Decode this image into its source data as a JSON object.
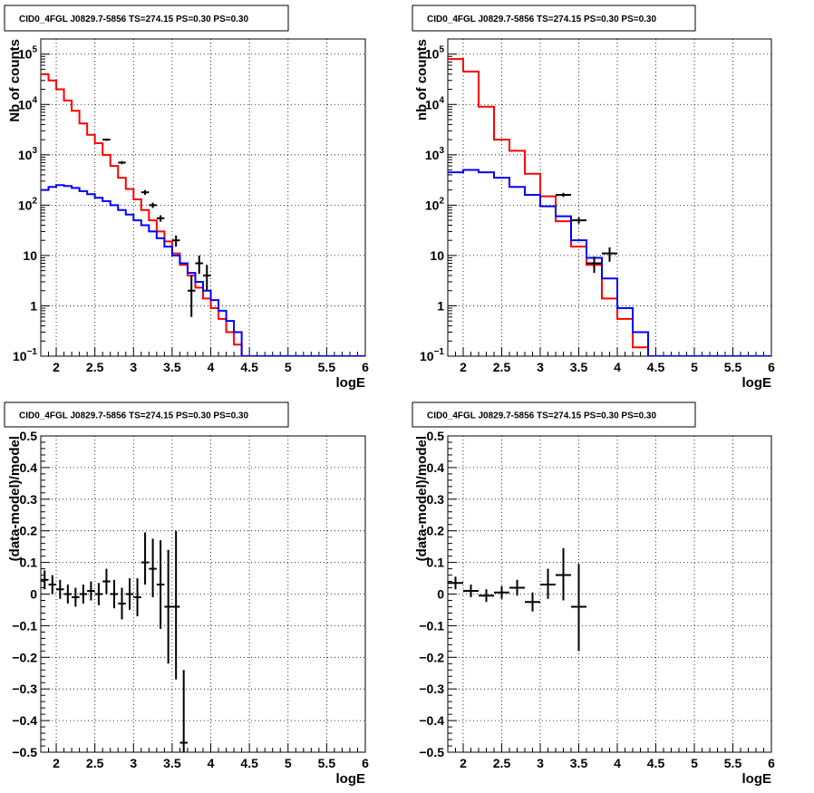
{
  "chart_data": [
    {
      "type": "line",
      "title": "CID0_4FGL J0829.7-5856 TS=274.15 PS=0.30 PS=0.30",
      "xlabel": "logE",
      "ylabel": "Nb of counts",
      "xlim": [
        1.8,
        6.0
      ],
      "ylim": [
        0.1,
        200000
      ],
      "yscale": "log",
      "grid": true,
      "x_ticks": [
        "2",
        "2.5",
        "3",
        "3.5",
        "4",
        "4.5",
        "5",
        "5.5",
        "6"
      ],
      "y_ticks": [
        {
          "v": 0.1,
          "base": "10",
          "exp": "−1"
        },
        {
          "v": 1,
          "label": "1"
        },
        {
          "v": 10,
          "label": "10"
        },
        {
          "v": 100,
          "base": "10",
          "exp": "2"
        },
        {
          "v": 1000,
          "base": "10",
          "exp": "3"
        },
        {
          "v": 10000,
          "base": "10",
          "exp": "4"
        },
        {
          "v": 100000,
          "base": "10",
          "exp": "5"
        }
      ],
      "series": [
        {
          "kind": "step",
          "color": "#ff0000",
          "edges": [
            1.8,
            1.9,
            2.0,
            2.1,
            2.2,
            2.3,
            2.4,
            2.5,
            2.6,
            2.7,
            2.8,
            2.9,
            3.0,
            3.1,
            3.2,
            3.3,
            3.4,
            3.5,
            3.6,
            3.7,
            3.8,
            3.9,
            4.0,
            4.1,
            4.2,
            4.3,
            4.4,
            4.5,
            4.6,
            4.7,
            4.8,
            4.9,
            5.0,
            5.1,
            5.2,
            5.3,
            5.4,
            5.5,
            5.6,
            5.7,
            5.8,
            5.9,
            6.0
          ],
          "values": [
            40000,
            30000,
            20000,
            12000,
            7500,
            4200,
            2500,
            1700,
            1000,
            600,
            350,
            210,
            130,
            80,
            50,
            30,
            19,
            11,
            6.5,
            4,
            2.3,
            1.4,
            0.9,
            0.55,
            0.3,
            0.17,
            0.1,
            0.1,
            0.1,
            0.1,
            0.1,
            0.1,
            0.1,
            0.1,
            0.1,
            0.1,
            0.1,
            0.1,
            0.1,
            0.1,
            0.1,
            0.1
          ]
        },
        {
          "kind": "step",
          "color": "#0000ff",
          "edges": [
            1.8,
            1.9,
            2.0,
            2.1,
            2.2,
            2.3,
            2.4,
            2.5,
            2.6,
            2.7,
            2.8,
            2.9,
            3.0,
            3.1,
            3.2,
            3.3,
            3.4,
            3.5,
            3.6,
            3.7,
            3.8,
            3.9,
            4.0,
            4.1,
            4.2,
            4.3,
            4.4,
            4.5,
            4.6,
            4.7,
            4.8,
            4.9,
            5.0,
            5.1,
            5.2,
            5.3,
            5.4,
            5.5,
            5.6,
            5.7,
            5.8,
            5.9,
            6.0
          ],
          "values": [
            200,
            230,
            250,
            240,
            220,
            190,
            165,
            140,
            120,
            100,
            80,
            65,
            50,
            40,
            30,
            22,
            15,
            10,
            7,
            4.5,
            3,
            2,
            1.3,
            0.8,
            0.5,
            0.3,
            0.1,
            0.1,
            0.1,
            0.1,
            0.1,
            0.1,
            0.1,
            0.1,
            0.1,
            0.1,
            0.1,
            0.1,
            0.1,
            0.1,
            0.1,
            0.1
          ]
        },
        {
          "kind": "errorbar",
          "color": "#000000",
          "points": [
            {
              "x": 2.65,
              "y": 2000,
              "ylo": 1900,
              "yhi": 2100,
              "xerr": 0.05
            },
            {
              "x": 2.85,
              "y": 700,
              "ylo": 650,
              "yhi": 750,
              "xerr": 0.05
            },
            {
              "x": 3.15,
              "y": 180,
              "ylo": 160,
              "yhi": 200,
              "xerr": 0.05
            },
            {
              "x": 3.25,
              "y": 100,
              "ylo": 88,
              "yhi": 112,
              "xerr": 0.05
            },
            {
              "x": 3.35,
              "y": 55,
              "ylo": 47,
              "yhi": 63,
              "xerr": 0.05
            },
            {
              "x": 3.55,
              "y": 20,
              "ylo": 15,
              "yhi": 25,
              "xerr": 0.05
            },
            {
              "x": 3.75,
              "y": 2,
              "ylo": 0.6,
              "yhi": 4,
              "xerr": 0.05
            },
            {
              "x": 3.85,
              "y": 7,
              "ylo": 4.3,
              "yhi": 10,
              "xerr": 0.05
            },
            {
              "x": 3.95,
              "y": 4,
              "ylo": 2,
              "yhi": 6.5,
              "xerr": 0.05
            }
          ]
        }
      ]
    },
    {
      "type": "line",
      "title": "CID0_4FGL J0829.7-5856 TS=274.15 PS=0.30 PS=0.30",
      "xlabel": "logE",
      "ylabel": "nb of counts",
      "xlim": [
        1.8,
        6.0
      ],
      "ylim": [
        0.1,
        200000
      ],
      "yscale": "log",
      "grid": true,
      "x_ticks": [
        "2",
        "2.5",
        "3",
        "3.5",
        "4",
        "4.5",
        "5",
        "5.5",
        "6"
      ],
      "y_ticks": [
        {
          "v": 0.1,
          "base": "10",
          "exp": "−1"
        },
        {
          "v": 1,
          "label": "1"
        },
        {
          "v": 10,
          "label": "10"
        },
        {
          "v": 100,
          "base": "10",
          "exp": "2"
        },
        {
          "v": 1000,
          "base": "10",
          "exp": "3"
        },
        {
          "v": 10000,
          "base": "10",
          "exp": "4"
        },
        {
          "v": 100000,
          "base": "10",
          "exp": "5"
        }
      ],
      "series": [
        {
          "kind": "step",
          "color": "#ff0000",
          "edges": [
            1.8,
            2.0,
            2.2,
            2.4,
            2.6,
            2.8,
            3.0,
            3.2,
            3.4,
            3.6,
            3.8,
            4.0,
            4.2,
            4.4,
            4.6,
            4.8,
            5.0,
            5.2,
            5.4,
            5.6,
            5.8,
            6.0
          ],
          "values": [
            80000,
            45000,
            9000,
            2000,
            1200,
            420,
            150,
            48,
            15,
            6.5,
            1.4,
            0.55,
            0.15,
            0.1,
            0.1,
            0.1,
            0.1,
            0.1,
            0.1,
            0.1,
            0.1
          ]
        },
        {
          "kind": "step",
          "color": "#0000ff",
          "edges": [
            1.8,
            2.0,
            2.2,
            2.4,
            2.6,
            2.8,
            3.0,
            3.2,
            3.4,
            3.6,
            3.8,
            4.0,
            4.2,
            4.4,
            4.6,
            4.8,
            5.0,
            5.2,
            5.4,
            5.6,
            5.8,
            6.0
          ],
          "values": [
            450,
            500,
            450,
            350,
            230,
            160,
            95,
            60,
            20,
            9,
            3.5,
            0.9,
            0.3,
            0.1,
            0.1,
            0.1,
            0.1,
            0.1,
            0.1,
            0.1,
            0.1
          ]
        },
        {
          "kind": "errorbar",
          "color": "#000000",
          "points": [
            {
              "x": 3.3,
              "y": 160,
              "ylo": 145,
              "yhi": 175,
              "xerr": 0.1
            },
            {
              "x": 3.5,
              "y": 50,
              "ylo": 43,
              "yhi": 57,
              "xerr": 0.1
            },
            {
              "x": 3.7,
              "y": 7,
              "ylo": 4.5,
              "yhi": 9.5,
              "xerr": 0.1
            },
            {
              "x": 3.9,
              "y": 11,
              "ylo": 7.5,
              "yhi": 14.5,
              "xerr": 0.1
            }
          ]
        }
      ]
    },
    {
      "type": "scatter",
      "title": "CID0_4FGL J0829.7-5856 TS=274.15 PS=0.30 PS=0.30",
      "xlabel": "logE",
      "ylabel": "(data-model)/model",
      "xlim": [
        1.8,
        6.0
      ],
      "ylim": [
        -0.5,
        0.5
      ],
      "yscale": "linear",
      "grid": true,
      "x_ticks": [
        "2",
        "2.5",
        "3",
        "3.5",
        "4",
        "4.5",
        "5",
        "5.5",
        "6"
      ],
      "y_ticks": [
        {
          "v": -0.5,
          "label": "−0.5"
        },
        {
          "v": -0.4,
          "label": "−0.4"
        },
        {
          "v": -0.3,
          "label": "−0.3"
        },
        {
          "v": -0.2,
          "label": "−0.2"
        },
        {
          "v": -0.1,
          "label": "−0.1"
        },
        {
          "v": 0,
          "label": "0"
        },
        {
          "v": 0.1,
          "label": "0.1"
        },
        {
          "v": 0.2,
          "label": "0.2"
        },
        {
          "v": 0.3,
          "label": "0.3"
        },
        {
          "v": 0.4,
          "label": "0.4"
        },
        {
          "v": 0.5,
          "label": "0.5"
        }
      ],
      "series": [
        {
          "kind": "errorbar",
          "color": "#000000",
          "points": [
            {
              "x": 1.85,
              "y": 0.045,
              "ylo": 0.015,
              "yhi": 0.075,
              "xerr": 0.05
            },
            {
              "x": 1.95,
              "y": 0.03,
              "ylo": 0.0,
              "yhi": 0.06,
              "xerr": 0.05
            },
            {
              "x": 2.05,
              "y": 0.015,
              "ylo": -0.015,
              "yhi": 0.045,
              "xerr": 0.05
            },
            {
              "x": 2.15,
              "y": 0.0,
              "ylo": -0.03,
              "yhi": 0.03,
              "xerr": 0.05
            },
            {
              "x": 2.25,
              "y": -0.01,
              "ylo": -0.04,
              "yhi": 0.02,
              "xerr": 0.05
            },
            {
              "x": 2.35,
              "y": 0.0,
              "ylo": -0.03,
              "yhi": 0.03,
              "xerr": 0.05
            },
            {
              "x": 2.45,
              "y": 0.01,
              "ylo": -0.02,
              "yhi": 0.04,
              "xerr": 0.05
            },
            {
              "x": 2.55,
              "y": 0.0,
              "ylo": -0.035,
              "yhi": 0.035,
              "xerr": 0.05
            },
            {
              "x": 2.65,
              "y": 0.04,
              "ylo": 0.0,
              "yhi": 0.08,
              "xerr": 0.05
            },
            {
              "x": 2.75,
              "y": 0.0,
              "ylo": -0.045,
              "yhi": 0.045,
              "xerr": 0.05
            },
            {
              "x": 2.85,
              "y": -0.03,
              "ylo": -0.08,
              "yhi": 0.02,
              "xerr": 0.05
            },
            {
              "x": 2.95,
              "y": 0.0,
              "ylo": -0.05,
              "yhi": 0.05,
              "xerr": 0.05
            },
            {
              "x": 3.05,
              "y": -0.01,
              "ylo": -0.07,
              "yhi": 0.05,
              "xerr": 0.05
            },
            {
              "x": 3.15,
              "y": 0.1,
              "ylo": 0.03,
              "yhi": 0.195,
              "xerr": 0.05
            },
            {
              "x": 3.25,
              "y": 0.08,
              "ylo": -0.01,
              "yhi": 0.175,
              "xerr": 0.05
            },
            {
              "x": 3.35,
              "y": 0.03,
              "ylo": -0.11,
              "yhi": 0.17,
              "xerr": 0.05
            },
            {
              "x": 3.45,
              "y": -0.04,
              "ylo": -0.22,
              "yhi": 0.14,
              "xerr": 0.05
            },
            {
              "x": 3.55,
              "y": -0.04,
              "ylo": -0.27,
              "yhi": 0.2,
              "xerr": 0.05
            },
            {
              "x": 3.65,
              "y": -0.47,
              "ylo": -0.5,
              "yhi": -0.24,
              "xerr": 0.05
            }
          ]
        }
      ]
    },
    {
      "type": "scatter",
      "title": "CID0_4FGL J0829.7-5856 TS=274.15 PS=0.30 PS=0.30",
      "xlabel": "logE",
      "ylabel": "(data-model)/model",
      "xlim": [
        1.8,
        6.0
      ],
      "ylim": [
        -0.5,
        0.5
      ],
      "yscale": "linear",
      "grid": true,
      "x_ticks": [
        "2",
        "2.5",
        "3",
        "3.5",
        "4",
        "4.5",
        "5",
        "5.5",
        "6"
      ],
      "y_ticks": [
        {
          "v": -0.5,
          "label": "−0.5"
        },
        {
          "v": -0.4,
          "label": "−0.4"
        },
        {
          "v": -0.3,
          "label": "−0.3"
        },
        {
          "v": -0.2,
          "label": "−0.2"
        },
        {
          "v": -0.1,
          "label": "−0.1"
        },
        {
          "v": 0,
          "label": "0"
        },
        {
          "v": 0.1,
          "label": "0.1"
        },
        {
          "v": 0.2,
          "label": "0.2"
        },
        {
          "v": 0.3,
          "label": "0.3"
        },
        {
          "v": 0.4,
          "label": "0.4"
        },
        {
          "v": 0.5,
          "label": "0.5"
        }
      ],
      "series": [
        {
          "kind": "errorbar",
          "color": "#000000",
          "points": [
            {
              "x": 1.9,
              "y": 0.035,
              "ylo": 0.015,
              "yhi": 0.055,
              "xerr": 0.1
            },
            {
              "x": 2.1,
              "y": 0.01,
              "ylo": -0.01,
              "yhi": 0.03,
              "xerr": 0.1
            },
            {
              "x": 2.3,
              "y": -0.005,
              "ylo": -0.025,
              "yhi": 0.015,
              "xerr": 0.1
            },
            {
              "x": 2.5,
              "y": 0.005,
              "ylo": -0.015,
              "yhi": 0.025,
              "xerr": 0.1
            },
            {
              "x": 2.7,
              "y": 0.02,
              "ylo": -0.005,
              "yhi": 0.045,
              "xerr": 0.1
            },
            {
              "x": 2.9,
              "y": -0.025,
              "ylo": -0.055,
              "yhi": 0.005,
              "xerr": 0.1
            },
            {
              "x": 3.1,
              "y": 0.03,
              "ylo": -0.015,
              "yhi": 0.08,
              "xerr": 0.1
            },
            {
              "x": 3.3,
              "y": 0.06,
              "ylo": -0.02,
              "yhi": 0.145,
              "xerr": 0.1
            },
            {
              "x": 3.5,
              "y": -0.04,
              "ylo": -0.18,
              "yhi": 0.095,
              "xerr": 0.1
            }
          ]
        }
      ]
    }
  ]
}
